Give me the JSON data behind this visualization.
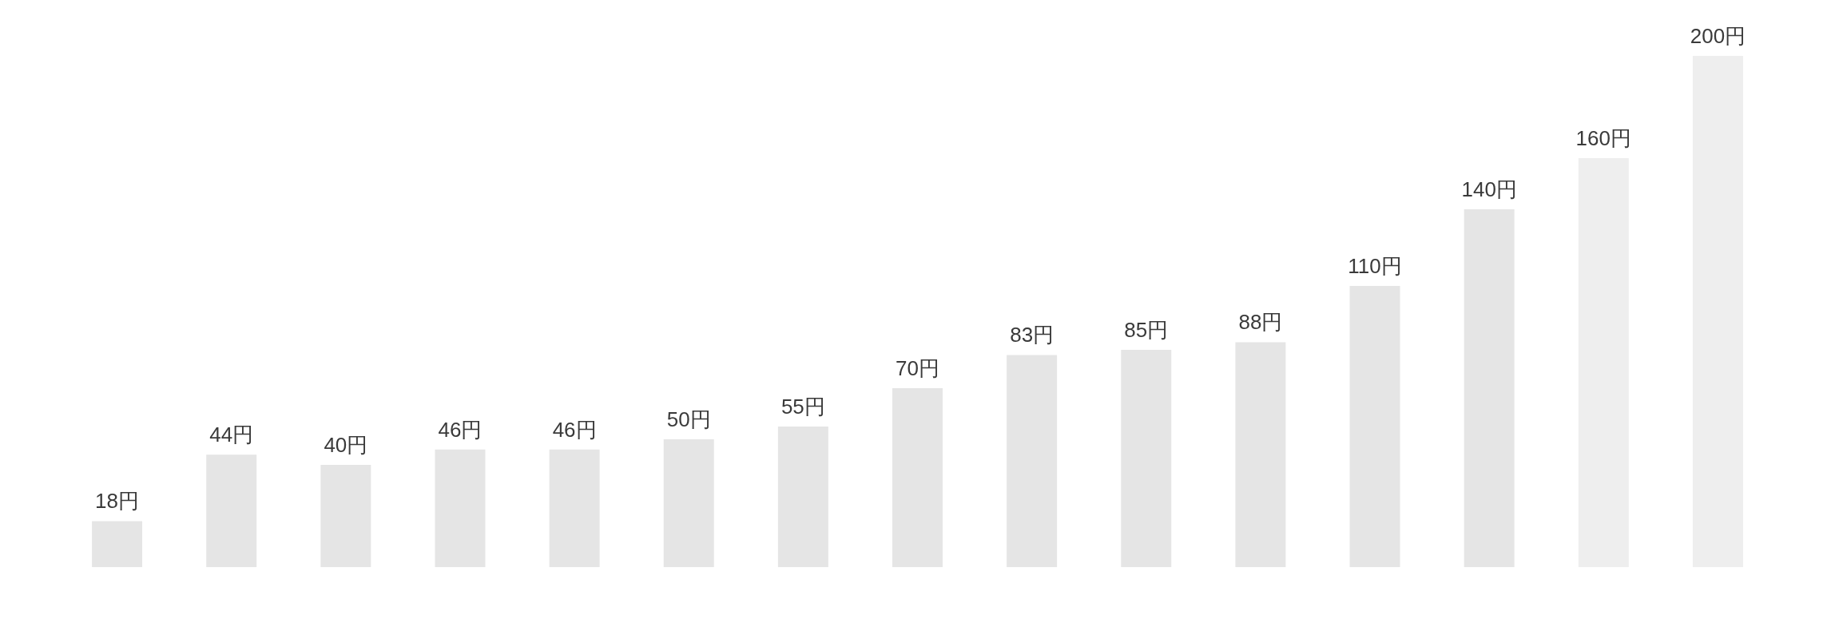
{
  "chart_data": {
    "type": "bar",
    "categories": [
      null,
      null,
      null,
      null,
      null,
      null,
      null,
      null,
      null,
      null,
      null,
      null,
      null,
      null,
      null
    ],
    "values": [
      18,
      44,
      40,
      46,
      46,
      50,
      55,
      70,
      83,
      85,
      88,
      110,
      140,
      160,
      200
    ],
    "colors": [
      "#e5e5e5",
      "#e5e5e5",
      "#e5e5e5",
      "#e5e5e5",
      "#e5e5e5",
      "#e5e5e5",
      "#e5e5e5",
      "#e5e5e5",
      "#e5e5e5",
      "#e5e5e5",
      "#e5e5e5",
      "#e5e5e5",
      "#e5e5e5",
      "#eeeeee",
      "#eeeeee"
    ],
    "value_labels": [
      "18円",
      "44円",
      "40円",
      "46円",
      "46円",
      "50円",
      "55円",
      "70円",
      "83円",
      "85円",
      "88円",
      "110円",
      "140円",
      "160円",
      "200円"
    ]
  }
}
